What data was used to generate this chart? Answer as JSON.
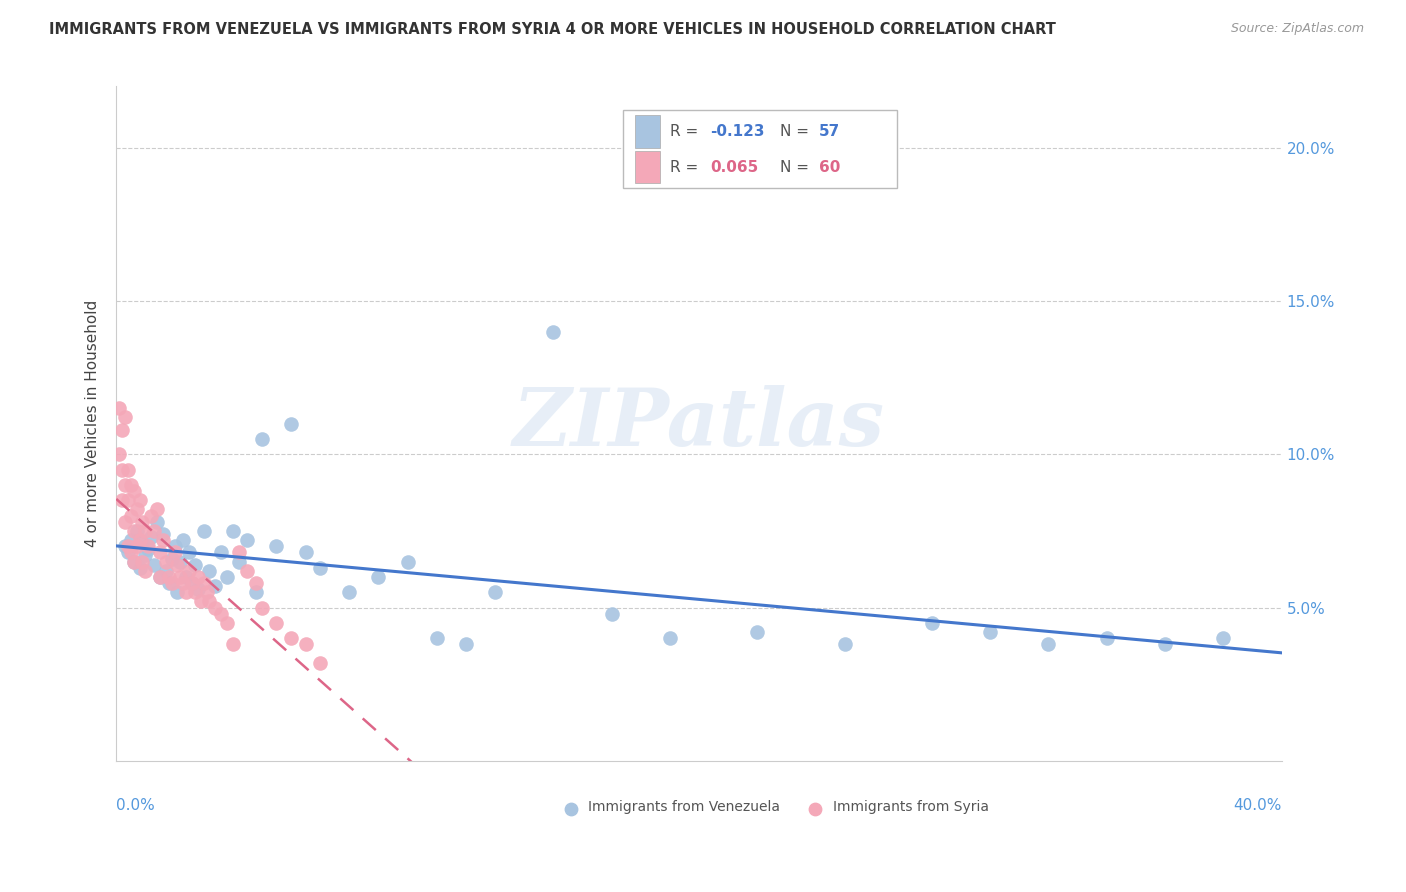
{
  "title": "IMMIGRANTS FROM VENEZUELA VS IMMIGRANTS FROM SYRIA 4 OR MORE VEHICLES IN HOUSEHOLD CORRELATION CHART",
  "source": "Source: ZipAtlas.com",
  "ylabel": "4 or more Vehicles in Household",
  "xlim": [
    0.0,
    0.4
  ],
  "ylim": [
    0.0,
    0.22
  ],
  "yticks": [
    0.05,
    0.1,
    0.15,
    0.2
  ],
  "ytick_labels": [
    "5.0%",
    "10.0%",
    "15.0%",
    "20.0%"
  ],
  "xticks": [
    0.0,
    0.05,
    0.1,
    0.15,
    0.2,
    0.25,
    0.3,
    0.35,
    0.4
  ],
  "color_venezuela": "#a8c4e0",
  "color_syria": "#f4a8b8",
  "color_venezuela_line": "#4477cc",
  "color_syria_line": "#dd6688",
  "color_axis_labels": "#5599dd",
  "watermark": "ZIPatlas",
  "venezuela_x": [
    0.003,
    0.004,
    0.005,
    0.006,
    0.007,
    0.008,
    0.009,
    0.01,
    0.011,
    0.012,
    0.013,
    0.014,
    0.015,
    0.016,
    0.017,
    0.018,
    0.019,
    0.02,
    0.021,
    0.022,
    0.023,
    0.024,
    0.025,
    0.026,
    0.027,
    0.028,
    0.03,
    0.032,
    0.034,
    0.036,
    0.038,
    0.04,
    0.042,
    0.045,
    0.048,
    0.05,
    0.055,
    0.06,
    0.065,
    0.07,
    0.08,
    0.09,
    0.1,
    0.11,
    0.12,
    0.13,
    0.15,
    0.17,
    0.19,
    0.22,
    0.25,
    0.28,
    0.3,
    0.32,
    0.34,
    0.36,
    0.38
  ],
  "venezuela_y": [
    0.07,
    0.068,
    0.072,
    0.065,
    0.075,
    0.063,
    0.071,
    0.067,
    0.069,
    0.073,
    0.064,
    0.078,
    0.06,
    0.074,
    0.062,
    0.058,
    0.066,
    0.07,
    0.055,
    0.065,
    0.072,
    0.06,
    0.068,
    0.058,
    0.064,
    0.056,
    0.075,
    0.062,
    0.057,
    0.068,
    0.06,
    0.075,
    0.065,
    0.072,
    0.055,
    0.105,
    0.07,
    0.11,
    0.068,
    0.063,
    0.055,
    0.06,
    0.065,
    0.04,
    0.038,
    0.055,
    0.14,
    0.048,
    0.04,
    0.042,
    0.038,
    0.045,
    0.042,
    0.038,
    0.04,
    0.038,
    0.04
  ],
  "syria_x": [
    0.001,
    0.001,
    0.002,
    0.002,
    0.002,
    0.003,
    0.003,
    0.003,
    0.004,
    0.004,
    0.004,
    0.005,
    0.005,
    0.005,
    0.006,
    0.006,
    0.006,
    0.007,
    0.007,
    0.008,
    0.008,
    0.009,
    0.009,
    0.01,
    0.01,
    0.011,
    0.012,
    0.013,
    0.014,
    0.015,
    0.015,
    0.016,
    0.017,
    0.018,
    0.019,
    0.02,
    0.021,
    0.022,
    0.023,
    0.024,
    0.025,
    0.026,
    0.027,
    0.028,
    0.029,
    0.03,
    0.031,
    0.032,
    0.034,
    0.036,
    0.038,
    0.04,
    0.042,
    0.045,
    0.048,
    0.05,
    0.055,
    0.06,
    0.065,
    0.07
  ],
  "syria_y": [
    0.115,
    0.1,
    0.108,
    0.095,
    0.085,
    0.112,
    0.09,
    0.078,
    0.095,
    0.085,
    0.07,
    0.09,
    0.08,
    0.068,
    0.088,
    0.075,
    0.065,
    0.082,
    0.07,
    0.085,
    0.072,
    0.078,
    0.065,
    0.075,
    0.062,
    0.07,
    0.08,
    0.075,
    0.082,
    0.068,
    0.06,
    0.072,
    0.065,
    0.06,
    0.058,
    0.068,
    0.064,
    0.06,
    0.058,
    0.055,
    0.062,
    0.058,
    0.055,
    0.06,
    0.052,
    0.058,
    0.055,
    0.052,
    0.05,
    0.048,
    0.045,
    0.038,
    0.068,
    0.062,
    0.058,
    0.05,
    0.045,
    0.04,
    0.038,
    0.032
  ]
}
